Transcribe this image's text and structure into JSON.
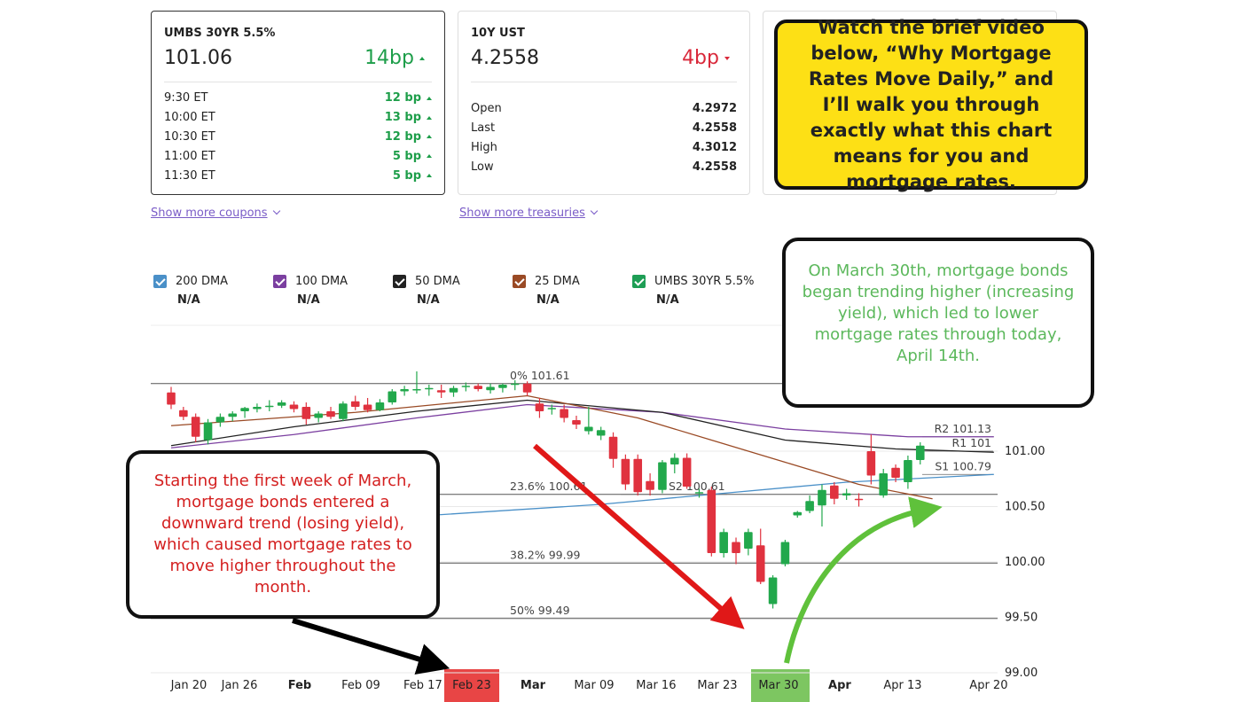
{
  "cards": [
    {
      "title": "UMBS 30YR 5.5%",
      "price": 101.06,
      "change": "14bp",
      "rows": [
        [
          "9:30 ET",
          "12 bp"
        ],
        [
          "10:00 ET",
          "13 bp"
        ],
        [
          "10:30 ET",
          "12 bp"
        ],
        [
          "11:00 ET",
          "5 bp"
        ],
        [
          "11:30 ET",
          "5 bp"
        ]
      ],
      "link": "Show more coupons"
    },
    {
      "title": "10Y UST",
      "price": 4.2558,
      "change": "4bp",
      "rows": [
        [
          "Open",
          4.2972
        ],
        [
          "Last",
          4.2558
        ],
        [
          "High",
          4.3012
        ],
        [
          "Low",
          4.2558
        ]
      ],
      "link": "Show more treasuries"
    }
  ],
  "annotations": [
    "Watch the brief video below, “Why Mortgage Rates Move Daily,” and I’ll walk you through exactly what this chart means for you and mortgage rates.",
    "On March 30th, mortgage bonds began trending higher (increasing yield), which led to lower mortgage rates through today, April 14th.",
    "Starting the first week of March, mortgage bonds entered a downward trend (losing yield), which caused mortgage rates to move higher throughout the month."
  ],
  "chart_data": {
    "type": "candlestick",
    "name": "UMBS 30YR 5.5%",
    "color": "#1e9e55",
    "readout": "N/A",
    "up_color": "#22a84c",
    "down_color": "#e0323f",
    "categories": [
      null,
      null,
      null,
      null,
      null,
      null,
      null,
      null,
      null,
      null,
      null,
      null,
      null,
      null,
      null,
      null,
      null,
      null,
      null,
      null,
      null,
      null,
      null,
      null,
      null,
      null,
      null,
      null,
      null,
      null,
      null,
      null,
      null,
      null,
      null,
      null,
      null,
      null,
      null,
      null,
      null,
      null,
      null,
      null,
      null,
      null,
      null,
      null,
      null,
      null,
      null,
      null,
      null,
      null,
      null,
      null,
      null,
      null,
      null,
      null,
      null,
      null
    ],
    "open": [
      101.53,
      101.37,
      101.31,
      101.1,
      101.26,
      101.31,
      101.36,
      101.38,
      101.4,
      101.41,
      101.42,
      101.4,
      101.3,
      101.36,
      101.29,
      101.45,
      101.42,
      101.37,
      101.44,
      101.54,
      101.55,
      101.56,
      101.55,
      101.53,
      101.58,
      101.59,
      101.55,
      101.57,
      101.6,
      101.61,
      101.43,
      101.38,
      101.38,
      101.28,
      101.18,
      101.14,
      101.13,
      100.93,
      100.93,
      100.73,
      100.65,
      100.88,
      100.94,
      100.62,
      100.65,
      100.08,
      100.18,
      100.12,
      100.15,
      99.62,
      99.98,
      100.42,
      100.46,
      100.51,
      100.69,
      100.6,
      100.57,
      101.0,
      100.6,
      100.85,
      100.72,
      100.92
    ],
    "high": [
      101.58,
      101.4,
      101.34,
      101.29,
      101.34,
      101.36,
      101.4,
      101.43,
      101.46,
      101.46,
      101.45,
      101.44,
      101.36,
      101.4,
      101.45,
      101.5,
      101.48,
      101.47,
      101.56,
      101.59,
      101.72,
      101.6,
      101.6,
      101.59,
      101.62,
      101.61,
      101.61,
      101.61,
      101.64,
      101.63,
      101.48,
      101.42,
      101.42,
      101.32,
      101.4,
      101.22,
      101.17,
      100.97,
      100.97,
      100.8,
      100.92,
      100.98,
      100.98,
      100.66,
      100.68,
      100.3,
      100.22,
      100.3,
      100.3,
      99.88,
      100.2,
      100.46,
      100.6,
      100.7,
      100.72,
      100.66,
      100.62,
      101.15,
      100.84,
      100.88,
      100.96,
      101.08
    ],
    "low": [
      101.38,
      101.28,
      101.08,
      101.06,
      101.22,
      101.27,
      101.3,
      101.35,
      101.36,
      101.39,
      101.35,
      101.24,
      101.26,
      101.29,
      101.27,
      101.37,
      101.35,
      101.36,
      101.42,
      101.5,
      101.52,
      101.5,
      101.48,
      101.49,
      101.54,
      101.54,
      101.52,
      101.53,
      101.55,
      101.5,
      101.3,
      101.33,
      101.26,
      101.2,
      101.15,
      101.1,
      100.85,
      100.65,
      100.6,
      100.6,
      100.62,
      100.8,
      100.66,
      100.58,
      100.05,
      100.04,
      99.98,
      100.06,
      99.8,
      99.58,
      99.96,
      100.4,
      100.44,
      100.32,
      100.52,
      100.56,
      100.5,
      100.7,
      100.58,
      100.72,
      100.66,
      100.88
    ],
    "close": [
      101.42,
      101.31,
      101.13,
      101.26,
      101.31,
      101.34,
      101.39,
      101.4,
      101.41,
      101.44,
      101.38,
      101.29,
      101.34,
      101.31,
      101.43,
      101.4,
      101.37,
      101.44,
      101.54,
      101.56,
      101.56,
      101.57,
      101.53,
      101.57,
      101.59,
      101.56,
      101.58,
      101.6,
      101.61,
      101.53,
      101.36,
      101.39,
      101.3,
      101.24,
      101.22,
      101.19,
      100.93,
      100.7,
      100.63,
      100.65,
      100.9,
      100.94,
      100.68,
      100.63,
      100.08,
      100.27,
      100.08,
      100.27,
      99.82,
      99.86,
      100.18,
      100.45,
      100.55,
      100.65,
      100.57,
      100.62,
      100.56,
      100.78,
      100.8,
      100.76,
      100.92,
      101.05
    ],
    "series": [
      {
        "name": "200 DMA",
        "color": "#4a90c8",
        "readout": "N/A",
        "x": [
          21,
          35,
          45,
          55,
          67
        ],
        "values": [
          100.42,
          100.52,
          100.62,
          100.72,
          100.79
        ]
      },
      {
        "name": "100 DMA",
        "color": "#7b3fa0",
        "readout": "N/A",
        "x": [
          0,
          10,
          20,
          29,
          40,
          50,
          60,
          67
        ],
        "values": [
          101.03,
          101.15,
          101.3,
          101.42,
          101.35,
          101.2,
          101.13,
          101.13
        ]
      },
      {
        "name": "50 DMA",
        "color": "#222222",
        "readout": "N/A",
        "x": [
          0,
          10,
          20,
          29,
          40,
          50,
          59,
          67
        ],
        "values": [
          101.05,
          101.22,
          101.36,
          101.46,
          101.35,
          101.1,
          101.02,
          100.99
        ]
      },
      {
        "name": "25 DMA",
        "color": "#9a4a25",
        "readout": "N/A",
        "x": [
          0,
          15,
          29,
          38,
          44,
          50,
          56,
          62
        ],
        "values": [
          101.23,
          101.35,
          101.5,
          101.3,
          101.1,
          100.9,
          100.7,
          100.57
        ]
      }
    ],
    "levels": [
      {
        "kind": "fib",
        "name": "0%",
        "value": 101.61
      },
      {
        "kind": "fib",
        "name": "23.6%",
        "value": 100.61
      },
      {
        "kind": "fib",
        "name": "38.2%",
        "value": 99.99
      },
      {
        "kind": "fib",
        "name": "50%",
        "value": 99.49
      },
      {
        "kind": "pivot",
        "name": "R2",
        "value": 101.13
      },
      {
        "kind": "pivot",
        "name": "R1",
        "value": 101
      },
      {
        "kind": "pivot",
        "name": "S1",
        "value": 100.79
      },
      {
        "kind": "pivot",
        "name": "S2",
        "value": 100.61
      }
    ],
    "ylim": [
      99,
      102
    ],
    "yticks": [
      {
        "value": 99,
        "label": "99.00"
      },
      {
        "value": 99.5,
        "label": "99.50"
      },
      {
        "value": 100,
        "label": "100.00"
      },
      {
        "value": 100.5,
        "label": "100.50"
      },
      {
        "value": 101,
        "label": "101.00"
      }
    ],
    "xlim": [
      -1.66,
      67.3
    ],
    "xticks": [
      {
        "value": 1.44,
        "label": "Jan 20"
      },
      {
        "value": 5.56,
        "label": "Jan 26"
      },
      {
        "value": 10.47,
        "label": "Feb"
      },
      {
        "value": 15.45,
        "label": "Feb 09"
      },
      {
        "value": 20.5,
        "label": "Feb 17"
      },
      {
        "value": 24.48,
        "label": "Feb 23"
      },
      {
        "value": 29.46,
        "label": "Mar"
      },
      {
        "value": 34.44,
        "label": "Mar 09"
      },
      {
        "value": 39.49,
        "label": "Mar 16"
      },
      {
        "value": 44.48,
        "label": "Mar 23"
      },
      {
        "value": 49.46,
        "label": "Mar 30"
      },
      {
        "value": 54.44,
        "label": "Apr"
      },
      {
        "value": 59.57,
        "label": "Apr 13"
      },
      {
        "value": 66.57,
        "label": "Apr 20"
      }
    ],
    "grid": true
  }
}
